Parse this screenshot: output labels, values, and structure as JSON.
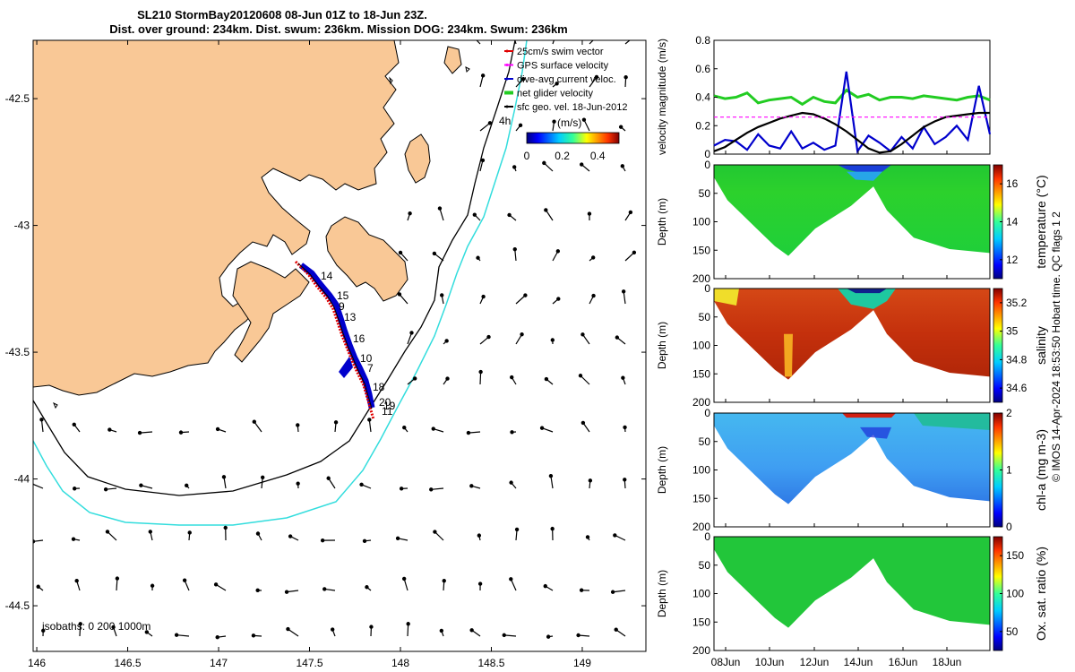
{
  "title": {
    "line1": "SL210 StormBay20120608 08-Jun 01Z to 18-Jun 23Z.",
    "line2": "Dist. over ground: 234km. Dist. swum: 236km. Mission DOG: 234km. Swum: 236km"
  },
  "map": {
    "x_ticks": [
      "146",
      "146.5",
      "147",
      "147.5",
      "148",
      "148.5",
      "149"
    ],
    "y_ticks": [
      "-42.5",
      "-43",
      "-43.5",
      "-44",
      "-44.5"
    ],
    "xlim": [
      145.98,
      149.35
    ],
    "ylim": [
      -44.68,
      -42.27
    ],
    "legend": [
      {
        "label": "25cm/s swim vector",
        "color": "#e00000"
      },
      {
        "label": "GPS surface velocity",
        "color": "#ff00ff"
      },
      {
        "label": "dive-avg current veloc.",
        "color": "#0000cc"
      },
      {
        "label": "net glider velocity",
        "color": "#22cc22"
      },
      {
        "label": "sfc geo. vel. 18-Jun-2012",
        "color": "#000000"
      }
    ],
    "legend_extra": "4h",
    "colorbar_unit": "(m/s)",
    "colorbar_ticks": [
      "0",
      "0.2",
      "0.4"
    ],
    "isobaths_label": "isobaths: 0   200  1000m",
    "track_labels": [
      "14",
      "15",
      "9",
      "13",
      "16",
      "10",
      "7",
      "18",
      "20",
      "19",
      "11"
    ],
    "land_color": "#f9c896",
    "isobath_200_color": "#000000",
    "isobath_1000_color": "#33dddd"
  },
  "chart_data": [
    {
      "type": "line",
      "ylabel": "velocity magnitude (m/s)",
      "ylim": [
        0,
        0.8
      ],
      "y_ticks": [
        "0",
        "0.2",
        "0.4",
        "0.6",
        "0.8"
      ],
      "series": [
        {
          "color": "#22cc22",
          "values": [
            0.41,
            0.39,
            0.4,
            0.43,
            0.36,
            0.38,
            0.39,
            0.4,
            0.35,
            0.4,
            0.37,
            0.36,
            0.45,
            0.4,
            0.42,
            0.38,
            0.4,
            0.4,
            0.39,
            0.41,
            0.4,
            0.39,
            0.38,
            0.4,
            0.41,
            0.38
          ]
        },
        {
          "color": "#0000cc",
          "values": [
            0.06,
            0.1,
            0.09,
            0.03,
            0.14,
            0.06,
            0.04,
            0.16,
            0.04,
            0.08,
            0.03,
            0.06,
            0.58,
            0.02,
            0.13,
            0.08,
            0.02,
            0.12,
            0.04,
            0.19,
            0.07,
            0.12,
            0.2,
            0.1,
            0.48,
            0.14
          ]
        },
        {
          "color": "#000000",
          "values": [
            0.02,
            0.05,
            0.1,
            0.15,
            0.19,
            0.22,
            0.25,
            0.27,
            0.29,
            0.28,
            0.25,
            0.21,
            0.16,
            0.1,
            0.04,
            0.01,
            0.02,
            0.07,
            0.13,
            0.19,
            0.23,
            0.26,
            0.27,
            0.28,
            0.29,
            0.29
          ]
        },
        {
          "color": "#ff00ff",
          "values": [
            0.26,
            0.26,
            0.26,
            0.26,
            0.26,
            0.26,
            0.26,
            0.26,
            0.26,
            0.26,
            0.26,
            0.26,
            0.26,
            0.26,
            0.26,
            0.26,
            0.26,
            0.26,
            0.26,
            0.26,
            0.26,
            0.26,
            0.26,
            0.26,
            0.26,
            0.26
          ]
        }
      ]
    },
    {
      "type": "heatmap",
      "ylabel": "Depth (m)",
      "clabel": "temperature (°C)",
      "c_ticks": [
        "12",
        "14",
        "16"
      ],
      "clim": [
        11,
        17
      ]
    },
    {
      "type": "heatmap",
      "ylabel": "Depth (m)",
      "clabel": "salinity",
      "c_ticks": [
        "34.6",
        "34.8",
        "35",
        "35.2"
      ],
      "clim": [
        34.5,
        35.3
      ]
    },
    {
      "type": "heatmap",
      "ylabel": "Depth (m)",
      "clabel": "chl-a (mg m-3)",
      "c_ticks": [
        "0",
        "1",
        "2"
      ],
      "clim": [
        0,
        2
      ]
    },
    {
      "type": "heatmap",
      "ylabel": "Depth (m)",
      "clabel": "Ox. sat. ratio (%)",
      "c_ticks": [
        "50",
        "100",
        "150"
      ],
      "clim": [
        25,
        175
      ]
    }
  ],
  "sections": {
    "depth_ticks": [
      "0",
      "50",
      "100",
      "150",
      "200"
    ],
    "x_ticks": [
      "08Jun",
      "10Jun",
      "12Jun",
      "14Jun",
      "16Jun",
      "18Jun"
    ],
    "depth_max": 200
  },
  "footer": "© IMOS 14-Apr-2024 18:53:50 Hobart time. QC flags 1  2"
}
